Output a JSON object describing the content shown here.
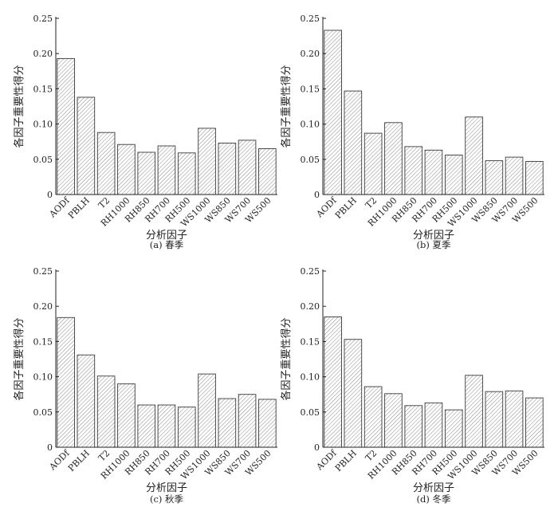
{
  "chart_data": [
    {
      "type": "bar",
      "caption": "(a) 春季",
      "xlabel": "分析因子",
      "ylabel": "各因子重要性得分",
      "ylim": [
        0,
        0.25
      ],
      "yticks": [
        "0",
        "0.05",
        "0.10",
        "0.15",
        "0.20",
        "0.25"
      ],
      "categories": [
        "AODf",
        "PBLH",
        "T2",
        "RH1000",
        "RH850",
        "RH700",
        "RH500",
        "WS1000",
        "WS850",
        "WS700",
        "WS500"
      ],
      "values": [
        0.193,
        0.138,
        0.088,
        0.071,
        0.06,
        0.069,
        0.059,
        0.094,
        0.073,
        0.077,
        0.065
      ]
    },
    {
      "type": "bar",
      "caption": "(b) 夏季",
      "xlabel": "分析因子",
      "ylabel": "各因子重要性得分",
      "ylim": [
        0,
        0.25
      ],
      "yticks": [
        "0",
        "0.05",
        "0.10",
        "0.15",
        "0.20",
        "0.25"
      ],
      "categories": [
        "AODf",
        "PBLH",
        "T2",
        "RH1000",
        "RH850",
        "RH700",
        "RH500",
        "WS1000",
        "WS850",
        "WS700",
        "WS500"
      ],
      "values": [
        0.233,
        0.147,
        0.087,
        0.102,
        0.068,
        0.063,
        0.056,
        0.11,
        0.048,
        0.053,
        0.047
      ]
    },
    {
      "type": "bar",
      "caption": "(c) 秋季",
      "xlabel": "分析因子",
      "ylabel": "各因子重要性得分",
      "ylim": [
        0,
        0.25
      ],
      "yticks": [
        "0",
        "0.05",
        "0.10",
        "0.15",
        "0.20",
        "0.25"
      ],
      "categories": [
        "AODf",
        "PBLH",
        "T2",
        "RH1000",
        "RH850",
        "RH700",
        "RH500",
        "WS1000",
        "WS850",
        "WS700",
        "WS500"
      ],
      "values": [
        0.184,
        0.131,
        0.101,
        0.09,
        0.06,
        0.06,
        0.057,
        0.104,
        0.069,
        0.075,
        0.068
      ]
    },
    {
      "type": "bar",
      "caption": "(d) 冬季",
      "xlabel": "分析因子",
      "ylabel": "各因子重要性得分",
      "ylim": [
        0,
        0.25
      ],
      "yticks": [
        "0",
        "0.05",
        "0.10",
        "0.15",
        "0.20",
        "0.25"
      ],
      "categories": [
        "AODf",
        "PBLH",
        "T2",
        "RH1000",
        "RH850",
        "RH700",
        "RH500",
        "WS1000",
        "WS850",
        "WS700",
        "WS500"
      ],
      "values": [
        0.185,
        0.153,
        0.086,
        0.076,
        0.059,
        0.063,
        0.053,
        0.102,
        0.079,
        0.08,
        0.07
      ]
    }
  ]
}
